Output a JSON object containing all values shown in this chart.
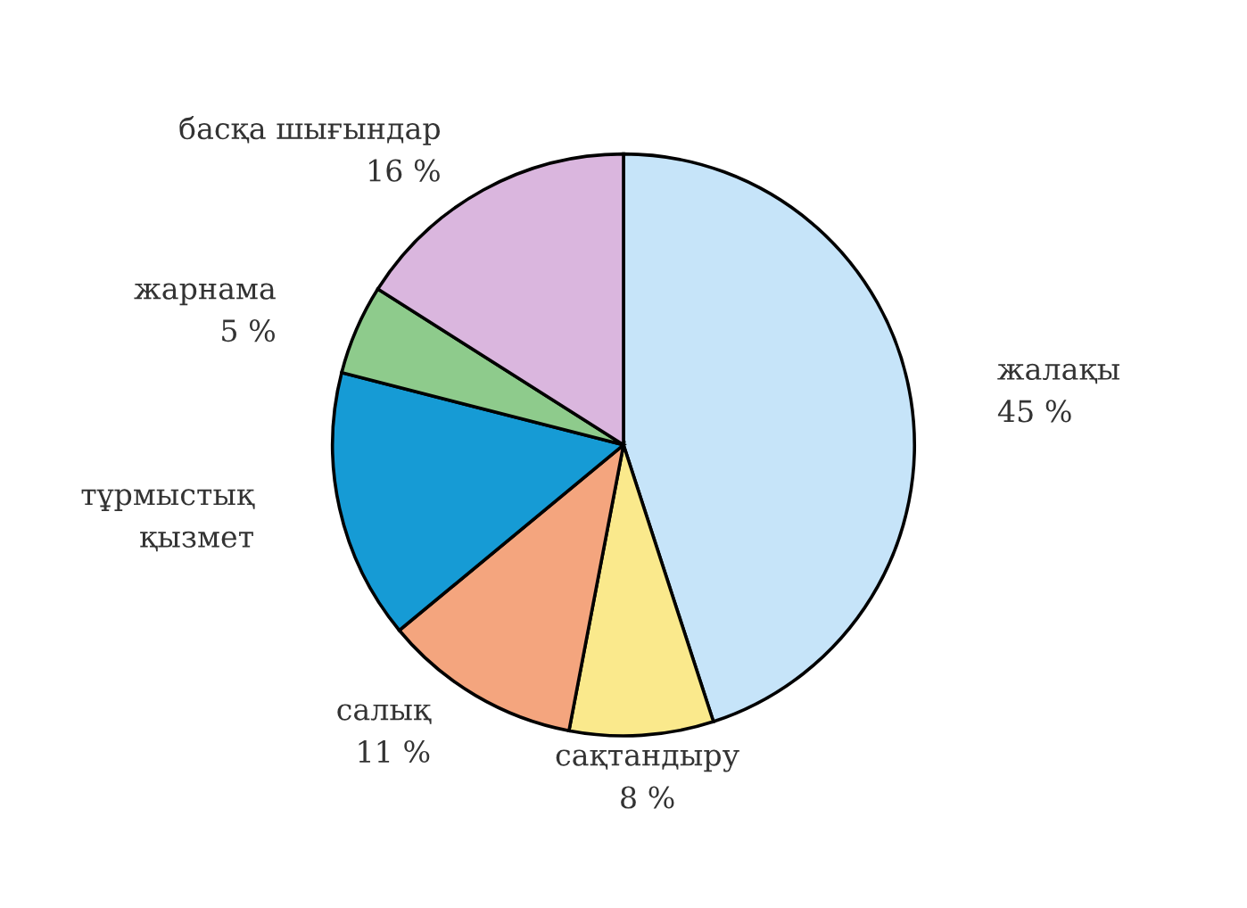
{
  "chart_data": {
    "type": "pie",
    "categories": [
      "жалақы",
      "сақтандыру",
      "салық",
      "тұрмыстық\nқызмет",
      "жарнама",
      "басқа шығындар"
    ],
    "values": [
      45,
      8,
      11,
      15,
      5,
      16
    ],
    "value_labels": [
      "45 %",
      "8 %",
      "11 %",
      null,
      "5 %",
      "16 %"
    ],
    "colors": [
      "#c6e4f9",
      "#fae98c",
      "#f4a57e",
      "#169bd5",
      "#8ecb8c",
      "#dab6de"
    ],
    "legend": false
  }
}
